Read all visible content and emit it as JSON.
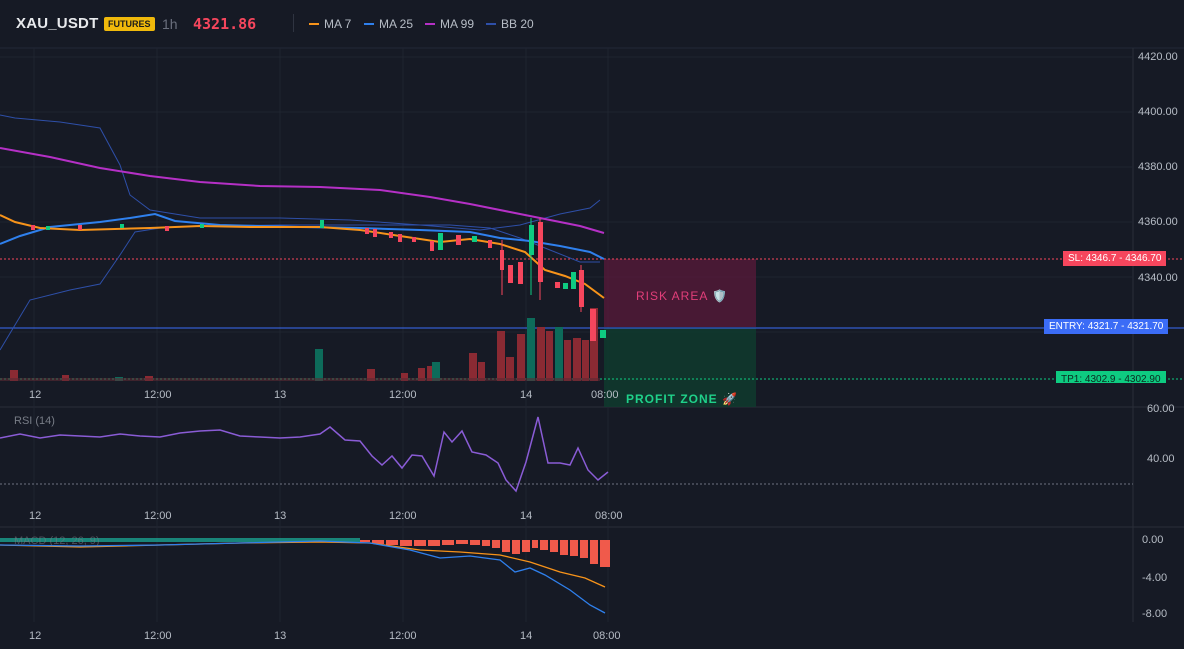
{
  "header": {
    "symbol": "XAU_USDT",
    "badge": "FUTURES",
    "timeframe": "1h",
    "price": "4321.86",
    "legend": [
      {
        "label": "MA 7",
        "color": "#f7931a"
      },
      {
        "label": "MA 25",
        "color": "#2f80ed"
      },
      {
        "label": "MA 99",
        "color": "#b530c6"
      },
      {
        "label": "BB 20",
        "color": "#2e4fa8"
      }
    ]
  },
  "colors": {
    "up": "#0ecb81",
    "down": "#f6465d",
    "grid": "#232836",
    "bg": "#161a25"
  },
  "price_axis": [
    "4420.00",
    "4400.00",
    "4380.00",
    "4360.00",
    "4340.00"
  ],
  "rsi": {
    "label": "RSI (14)",
    "axis": [
      "60.00",
      "40.00"
    ]
  },
  "macd": {
    "label": "MACD (12, 26, 9)",
    "axis": [
      "0.00",
      "-4.00",
      "-8.00"
    ]
  },
  "time_axis": [
    "12",
    "12:00",
    "13",
    "12:00",
    "14",
    "08:00"
  ],
  "annotations": {
    "risk_area": "RISK AREA 🛡️",
    "profit_zone": "PROFIT ZONE 🚀",
    "sl_tag": "SL: 4346.7",
    "sl_price": "4346.70",
    "entry_tag": "ENTRY: 4321.7",
    "entry_price": "4321.70",
    "tp_tag": "TP1: 4302.9",
    "tp_price": "4302.90"
  }
}
